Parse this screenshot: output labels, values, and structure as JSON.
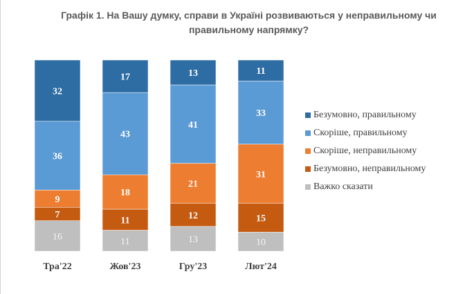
{
  "chart_data": {
    "type": "bar",
    "stacked": true,
    "title_lines": [
      "Графік 1. На Вашу думку, справи в Україні розвиваються у неправильному чи",
      "правильному напрямку?"
    ],
    "categories": [
      "Тра'22",
      "Жов'23",
      "Гру'23",
      "Лют'24"
    ],
    "series": [
      {
        "name": "Безумовно, правильному",
        "color": "#2E6DA4",
        "values": [
          32,
          17,
          13,
          11
        ]
      },
      {
        "name": "Скоріше, правильному",
        "color": "#5B9BD5",
        "values": [
          36,
          43,
          41,
          33
        ]
      },
      {
        "name": "Скоріше, неправильному",
        "color": "#ED7D31",
        "values": [
          9,
          18,
          21,
          31
        ]
      },
      {
        "name": "Безумовно, неправильному",
        "color": "#C55A11",
        "values": [
          7,
          11,
          12,
          15
        ]
      },
      {
        "name": "Важко сказати",
        "color": "#BFBFBF",
        "values": [
          16,
          11,
          13,
          10
        ]
      }
    ],
    "ylim": [
      0,
      100
    ],
    "legend": "right"
  }
}
